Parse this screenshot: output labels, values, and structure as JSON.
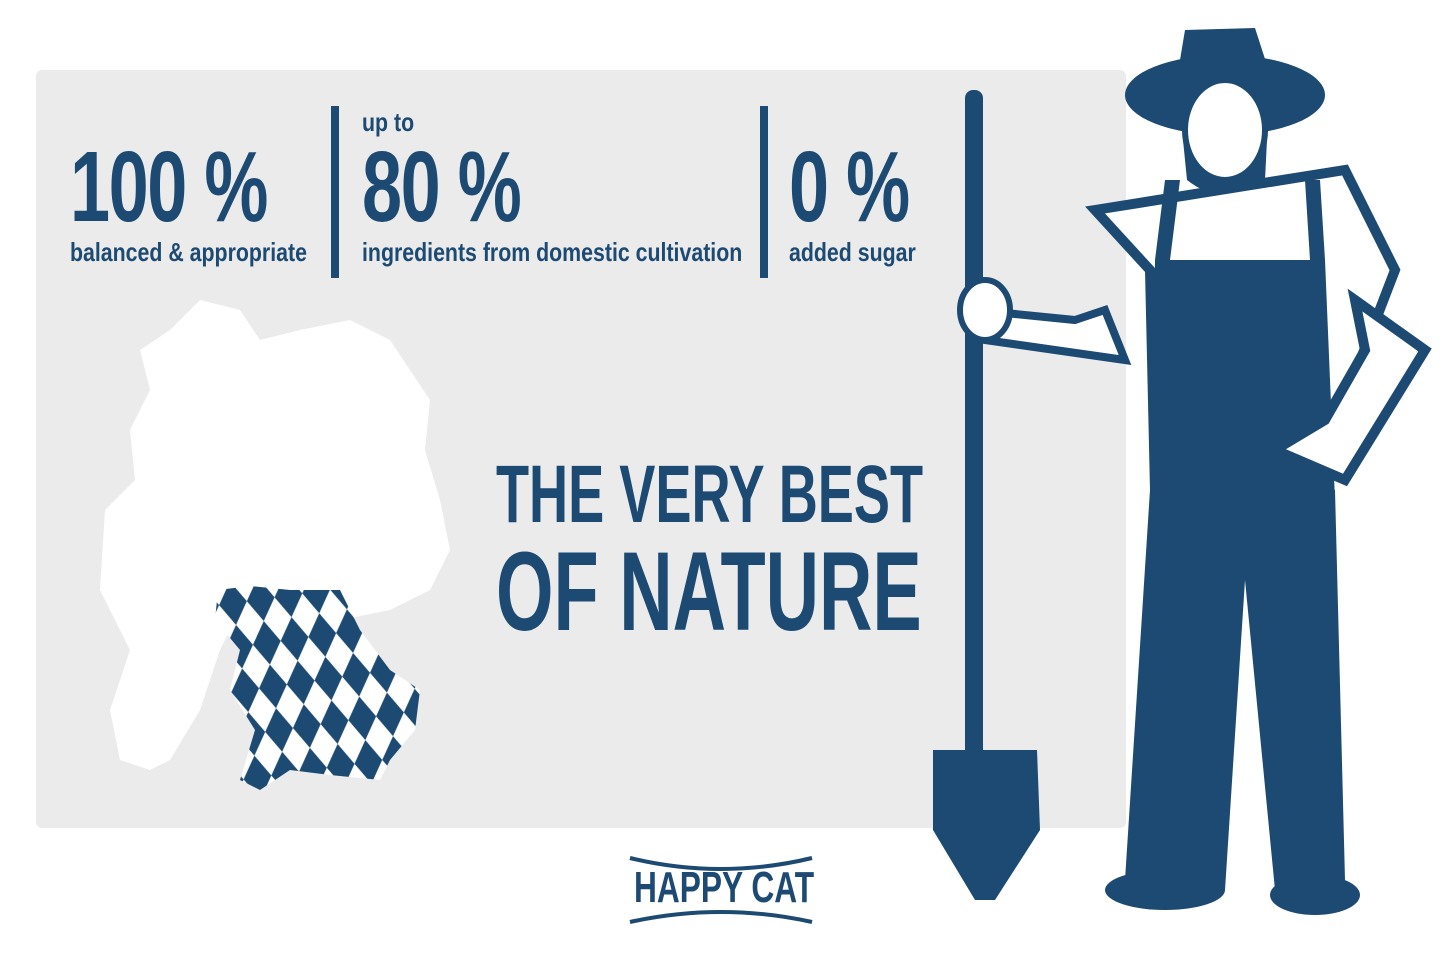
{
  "colors": {
    "brand": "#1d4a73",
    "panel": "#ebebeb",
    "background": "#ffffff"
  },
  "stats": [
    {
      "prefix": "",
      "value": "100 %",
      "caption": "balanced & appropriate"
    },
    {
      "prefix": "up to",
      "value": "80 %",
      "caption": "ingredients from domestic cultivation"
    },
    {
      "prefix": "",
      "value": "0 %",
      "caption": "added sugar"
    }
  ],
  "headline": {
    "line1": "THE VERY BEST",
    "line2": "OF NATURE"
  },
  "logo": {
    "text": "HAPPY CAT"
  },
  "illustrations": [
    "germany-map-with-bavaria-icon",
    "farmer-with-spade-icon"
  ]
}
